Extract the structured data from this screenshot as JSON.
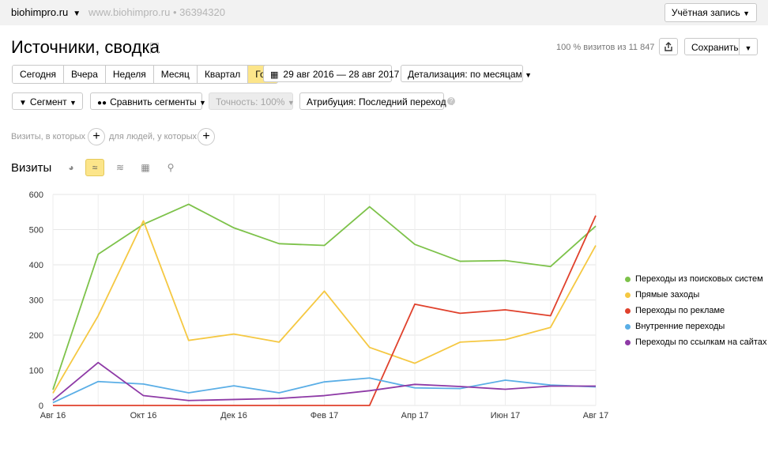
{
  "header": {
    "site": "biohimpro.ru",
    "url": "www.biohimpro.ru",
    "counter_id": "36394320",
    "account": "Учётная запись"
  },
  "report": {
    "title": "Источники, сводка",
    "visits_summary": "100 % визитов из 11 847",
    "save_label": "Сохранить"
  },
  "periods": [
    "Сегодня",
    "Вчера",
    "Неделя",
    "Месяц",
    "Квартал",
    "Год"
  ],
  "active_period": "Год",
  "date_range": "29 авг 2016 — 28 авг 2017",
  "detail": "Детализация: по месяцам",
  "segment_label": "Сегмент",
  "compare_label": "Сравнить сегменты",
  "accuracy_label": "Точность: 100%",
  "attribution_label": "Атрибуция: Последний переход",
  "filter": {
    "visits_text": "Визиты, в которых",
    "people_text": "для людей, у которых"
  },
  "visits_title": "Визиты",
  "colors": {
    "search": "#7dc24a",
    "direct": "#f5c842",
    "ads": "#e0412c",
    "internal": "#5aaee6",
    "links": "#8e3aa6",
    "accent": "#fce58a"
  },
  "chart_data": {
    "type": "line",
    "x": [
      "Авг 16",
      "Сен 16",
      "Окт 16",
      "Ноя 16",
      "Дек 16",
      "Янв 17",
      "Фев 17",
      "Мар 17",
      "Апр 17",
      "Май 17",
      "Июн 17",
      "Июл 17",
      "Авг 17"
    ],
    "xtick_labels": [
      "Авг 16",
      "Окт 16",
      "Дек 16",
      "Фев 17",
      "Апр 17",
      "Июн 17",
      "Авг 17"
    ],
    "ylim": [
      0,
      600
    ],
    "yticks": [
      0,
      100,
      200,
      300,
      400,
      500,
      600
    ],
    "grid": true,
    "legend_position": "right",
    "series": [
      {
        "name": "Переходы из поисковых систем",
        "color": "#7dc24a",
        "values": [
          45,
          430,
          515,
          572,
          505,
          460,
          455,
          565,
          458,
          410,
          412,
          395,
          510
        ]
      },
      {
        "name": "Прямые заходы",
        "color": "#f5c842",
        "values": [
          35,
          255,
          525,
          185,
          203,
          180,
          325,
          165,
          120,
          180,
          187,
          222,
          455
        ]
      },
      {
        "name": "Переходы по рекламе",
        "color": "#e0412c",
        "values": [
          0,
          0,
          0,
          0,
          0,
          0,
          0,
          0,
          288,
          262,
          272,
          255,
          540
        ]
      },
      {
        "name": "Внутренние переходы",
        "color": "#5aaee6",
        "values": [
          8,
          68,
          61,
          36,
          56,
          36,
          67,
          78,
          50,
          48,
          72,
          58,
          53
        ]
      },
      {
        "name": "Переходы по ссылкам на сайтах",
        "color": "#8e3aa6",
        "values": [
          15,
          122,
          28,
          14,
          17,
          20,
          28,
          42,
          60,
          54,
          46,
          55,
          55
        ]
      }
    ]
  }
}
